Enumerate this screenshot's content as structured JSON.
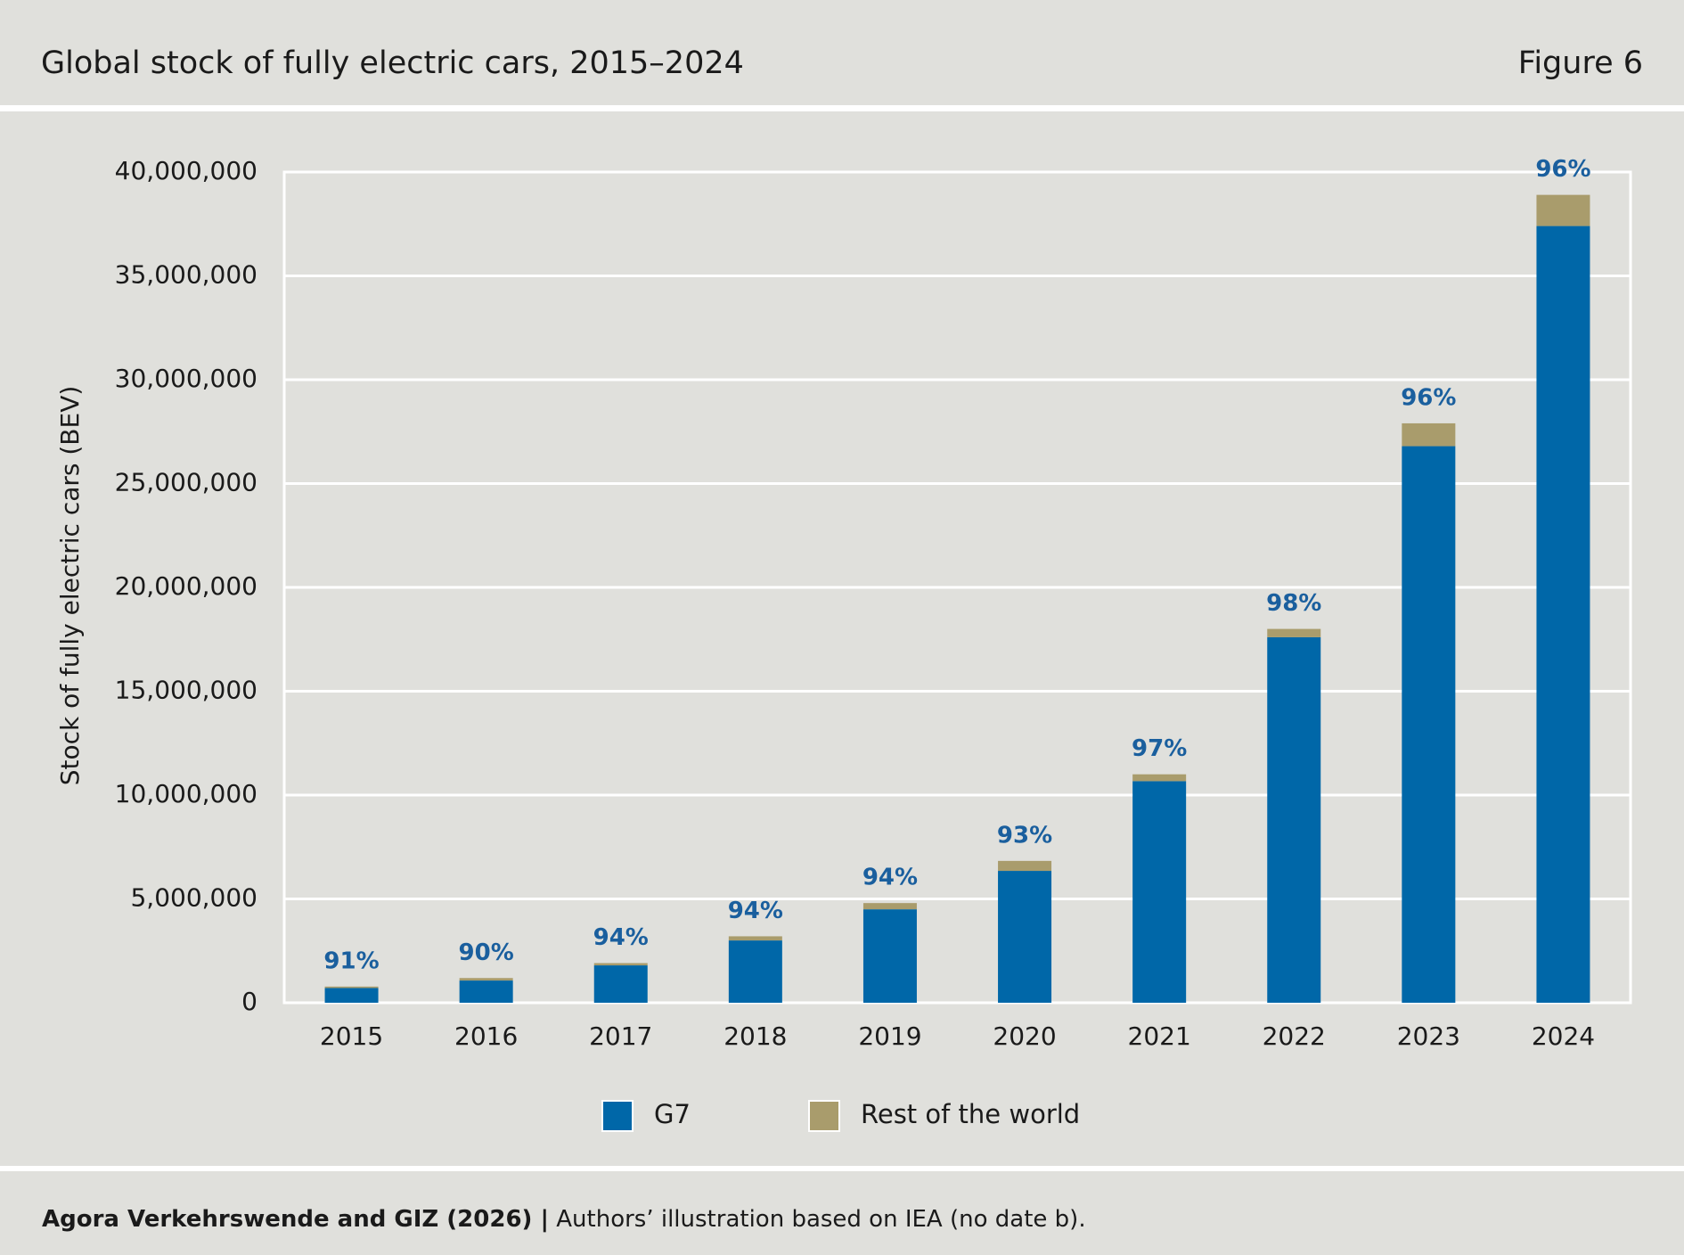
{
  "header": {
    "title": "Global stock of fully electric cars, 2015–2024",
    "figure": "Figure 6"
  },
  "chart_data": {
    "type": "stacked_bar",
    "y_label": "Stock of fully electric cars (BEV)",
    "categories": [
      "2015",
      "2016",
      "2017",
      "2018",
      "2019",
      "2020",
      "2021",
      "2022",
      "2023",
      "2024"
    ],
    "series": [
      {
        "name": "G7",
        "color": "#0067a8",
        "values": [
          710000,
          1070000,
          1800000,
          3000000,
          4500000,
          6350000,
          10670000,
          17600000,
          26800000,
          37400000
        ]
      },
      {
        "name": "Rest of the world",
        "color": "#a99c6c",
        "values": [
          70000,
          120000,
          110000,
          200000,
          300000,
          480000,
          330000,
          400000,
          1100000,
          1500000
        ]
      }
    ],
    "share_labels": [
      "91%",
      "90%",
      "94%",
      "94%",
      "94%",
      "93%",
      "97%",
      "98%",
      "96%",
      "96%"
    ],
    "ylim": [
      0,
      40000000
    ],
    "yticks": [
      0,
      {
        "value": 5000000,
        "label": "5,000,000"
      },
      {
        "value": 10000000,
        "label": "10,000,000"
      },
      {
        "value": 15000000,
        "label": "15,000,000"
      },
      {
        "value": 20000000,
        "label": "20,000,000"
      },
      {
        "value": 25000000,
        "label": "25,000,000"
      },
      {
        "value": 30000000,
        "label": "30,000,000"
      },
      {
        "value": 35000000,
        "label": "35,000,000"
      },
      {
        "value": 40000000,
        "label": "40,000,000"
      }
    ],
    "grid": true
  },
  "source": {
    "bold": "Agora Verkehrswende and GIZ (2026) |",
    "text": "Authors’ illustration based on IEA (no date b)."
  }
}
